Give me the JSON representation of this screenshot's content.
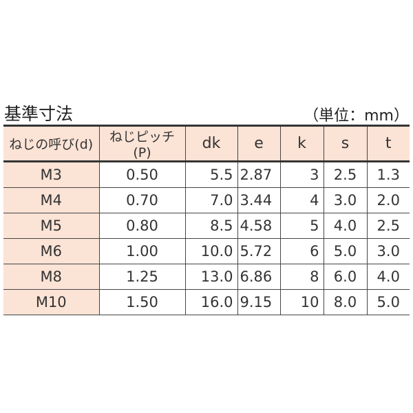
{
  "title": "基準寸法",
  "unit": "（単位：mm）",
  "table": {
    "headers": [
      "ねじの呼び(d)",
      "ねじピッチ(P)",
      "dk",
      "e",
      "k",
      "s",
      "t"
    ],
    "rows": [
      [
        "M3",
        "0.50",
        "5.5",
        "2.87",
        "3",
        "2.5",
        "1.3"
      ],
      [
        "M4",
        "0.70",
        "7.0",
        "3.44",
        "4",
        "3.0",
        "2.0"
      ],
      [
        "M5",
        "0.80",
        "8.5",
        "4.58",
        "5",
        "4.0",
        "2.5"
      ],
      [
        "M6",
        "1.00",
        "10.0",
        "5.72",
        "6",
        "5.0",
        "3.0"
      ],
      [
        "M8",
        "1.25",
        "13.0",
        "6.86",
        "8",
        "6.0",
        "4.0"
      ],
      [
        "M10",
        "1.50",
        "16.0",
        "9.15",
        "10",
        "8.0",
        "5.0"
      ]
    ]
  },
  "colors": {
    "header_bg": "#fbe3d6",
    "border": "#444444"
  }
}
